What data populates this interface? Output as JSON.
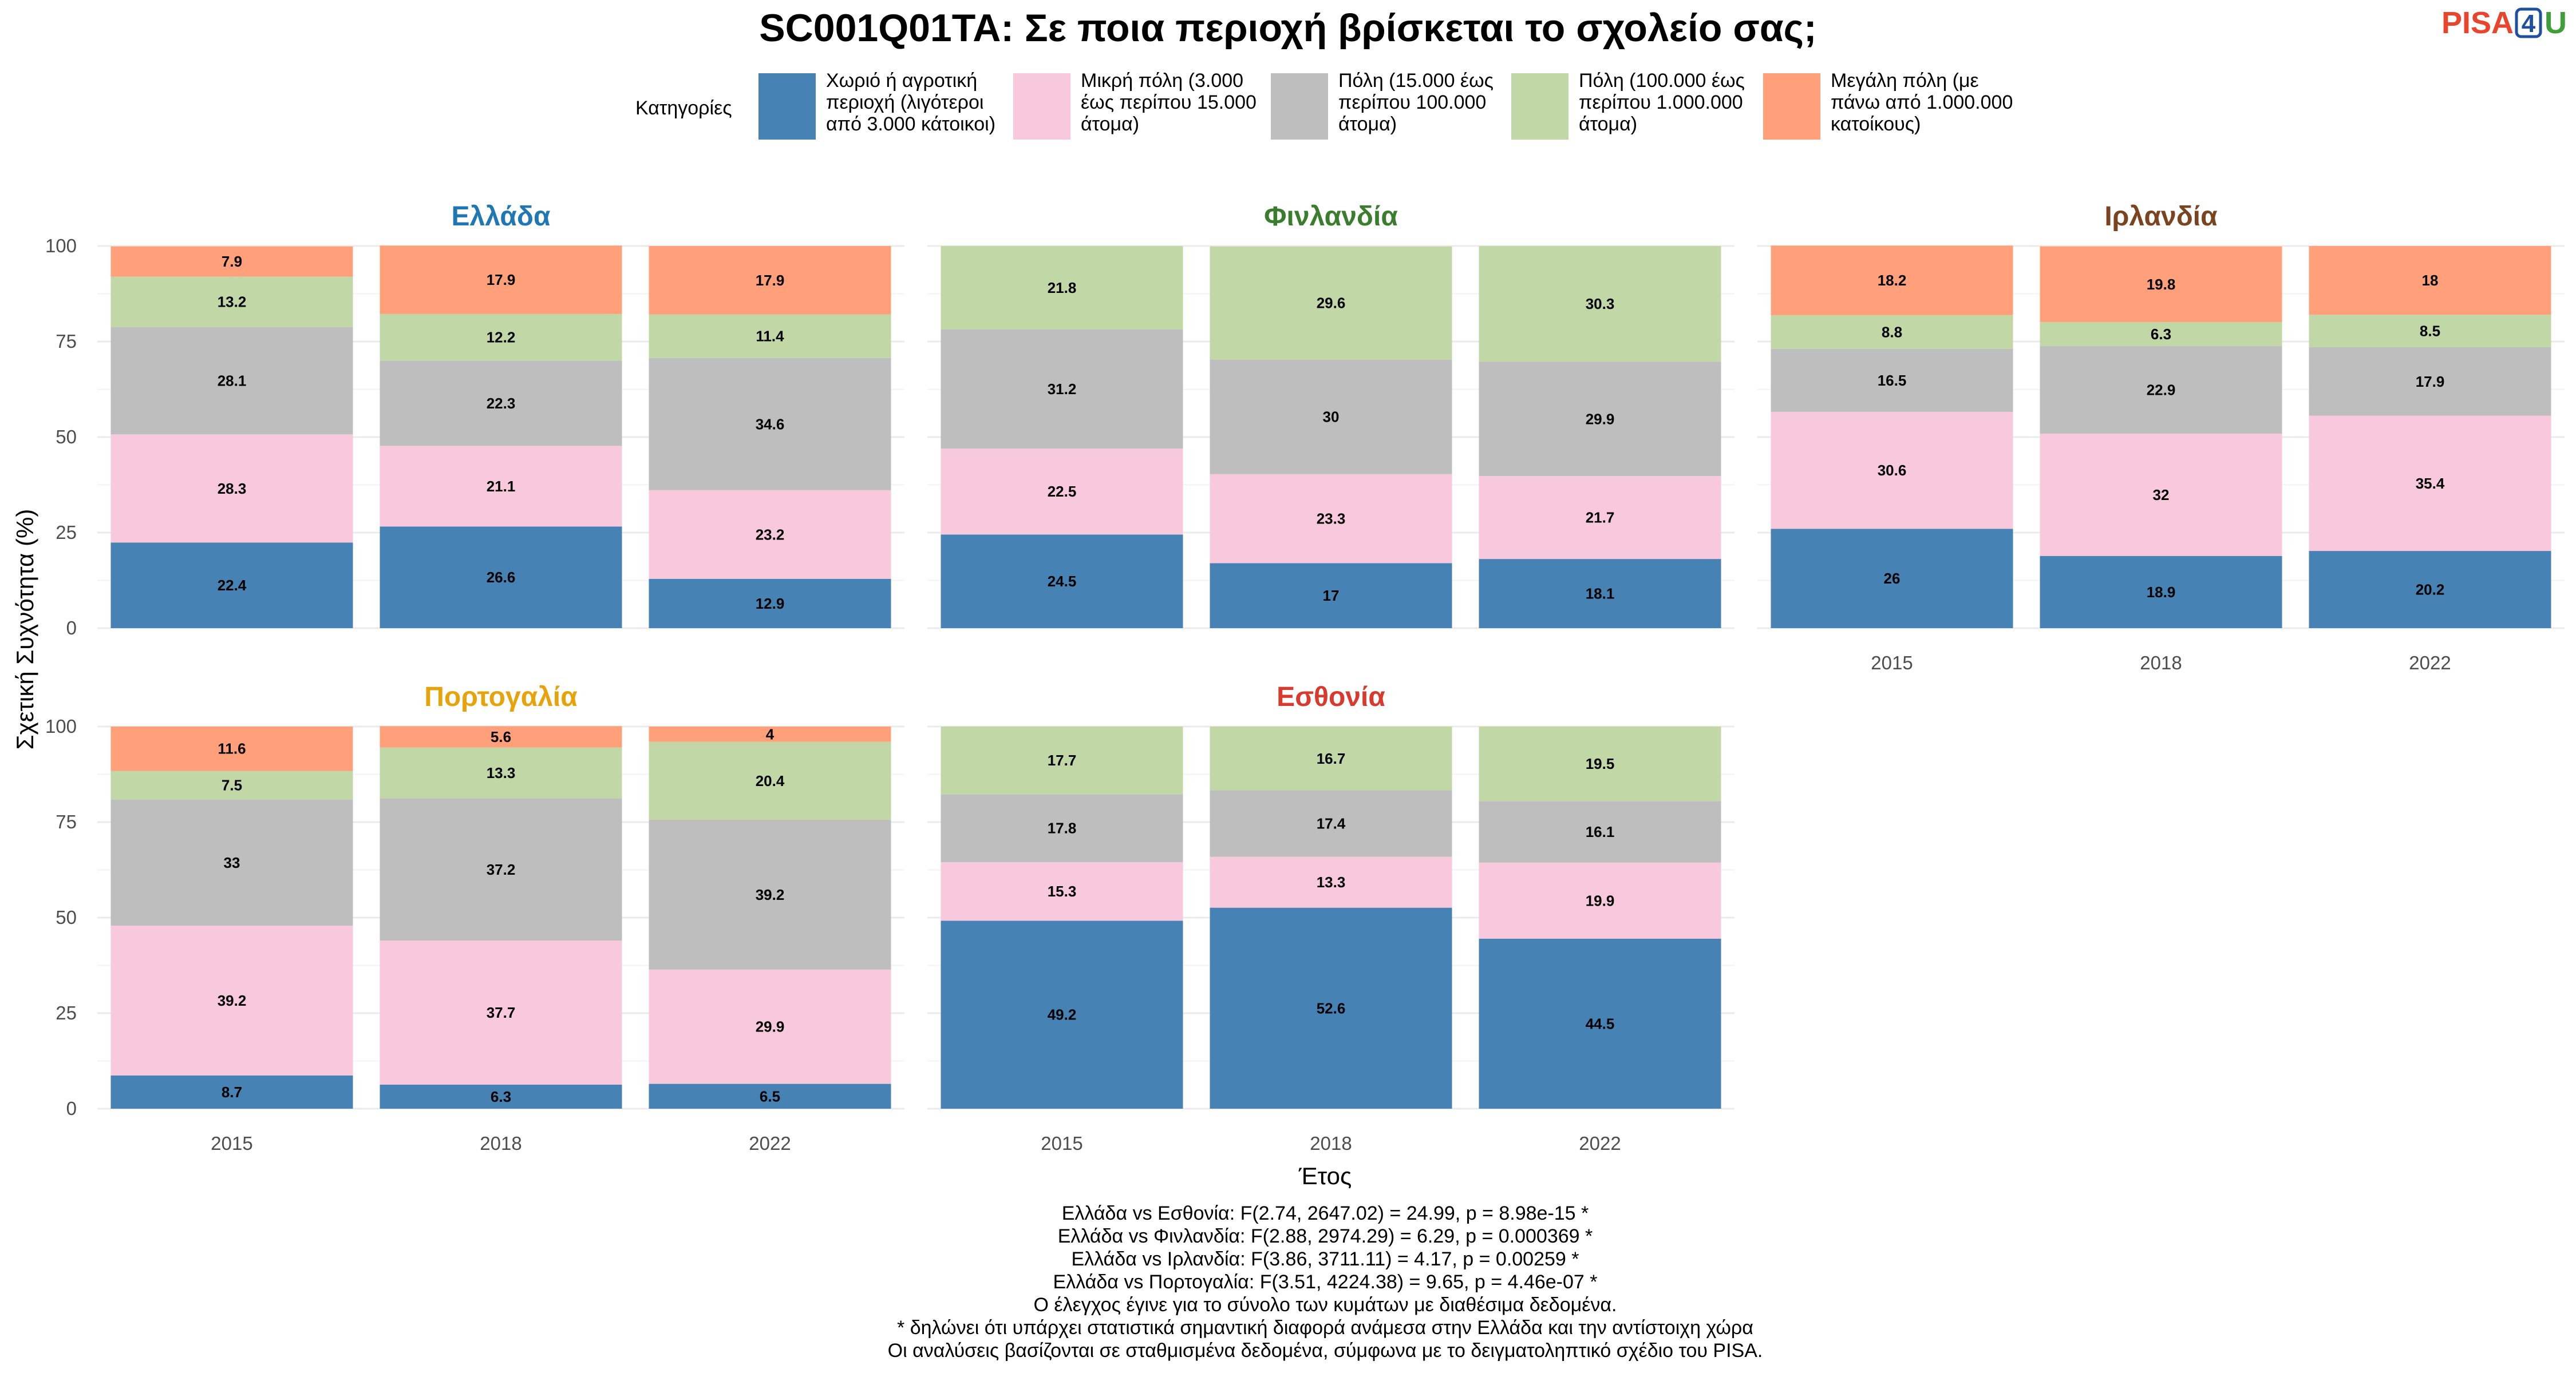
{
  "title": "SC001Q01TA: Σε ποια περιοχή βρίσκεται το σχολείο σας;",
  "logo": {
    "pisa": "PISA",
    "four": "4",
    "u": "U"
  },
  "legend": {
    "title": "Κατηγορίες",
    "items": [
      {
        "lines": [
          "Χωριό ή αγροτική",
          "περιοχή (λιγότεροι",
          "από 3.000 κάτοικοι)"
        ],
        "color": "#4682b4"
      },
      {
        "lines": [
          "Μικρή πόλη (3.000",
          "έως περίπου 15.000",
          "άτομα)"
        ],
        "color": "#f8c8dc"
      },
      {
        "lines": [
          "Πόλη (15.000 έως",
          "περίπου 100.000",
          "άτομα)"
        ],
        "color": "#bebebe"
      },
      {
        "lines": [
          "Πόλη (100.000 έως",
          "περίπου 1.000.000",
          "άτομα)"
        ],
        "color": "#c1d7a6"
      },
      {
        "lines": [
          "Μεγάλη πόλη (με",
          "πάνω από 1.000.000",
          "κατοίκους)"
        ],
        "color": "#ffa07a"
      }
    ]
  },
  "axes": {
    "ylabel": "Σχετική Συχνότητα (%)",
    "xlabel": "Έτος",
    "yticks": [
      "0",
      "25",
      "50",
      "75",
      "100"
    ]
  },
  "chart_data": {
    "type": "bar",
    "stacked": true,
    "ylim": [
      0,
      100
    ],
    "categories": [
      "2015",
      "2018",
      "2022"
    ],
    "facets": [
      {
        "name": "Ελλάδα",
        "color": "#1f77b4",
        "series": [
          [
            22.4,
            26.6,
            12.9
          ],
          [
            28.3,
            21.1,
            23.2
          ],
          [
            28.1,
            22.3,
            34.6
          ],
          [
            13.2,
            12.2,
            11.4
          ],
          [
            7.9,
            17.9,
            17.9
          ]
        ]
      },
      {
        "name": "Φινλανδία",
        "color": "#3a7d2c",
        "series": [
          [
            24.5,
            17,
            18.1
          ],
          [
            22.5,
            23.3,
            21.7
          ],
          [
            31.2,
            30,
            29.9
          ],
          [
            21.8,
            29.6,
            30.3
          ],
          [
            null,
            null,
            null
          ]
        ]
      },
      {
        "name": "Ιρλανδία",
        "color": "#7b4420",
        "series": [
          [
            26,
            18.9,
            20.2
          ],
          [
            30.6,
            32,
            35.4
          ],
          [
            16.5,
            22.9,
            17.9
          ],
          [
            8.8,
            6.3,
            8.5
          ],
          [
            18.2,
            19.8,
            18
          ]
        ]
      },
      {
        "name": "Πορτογαλία",
        "color": "#e8a20c",
        "series": [
          [
            8.7,
            6.3,
            6.5
          ],
          [
            39.2,
            37.7,
            29.9
          ],
          [
            33,
            37.2,
            39.2
          ],
          [
            7.5,
            13.3,
            20.4
          ],
          [
            11.6,
            5.6,
            4
          ]
        ]
      },
      {
        "name": "Εσθονία",
        "color": "#d93a2e",
        "series": [
          [
            49.2,
            52.6,
            44.5
          ],
          [
            15.3,
            13.3,
            19.9
          ],
          [
            17.8,
            17.4,
            16.1
          ],
          [
            17.7,
            16.7,
            19.5
          ],
          [
            null,
            null,
            null
          ]
        ]
      }
    ]
  },
  "notes": [
    "Ελλάδα vs Εσθονία: F(2.74, 2647.02) = 24.99, p = 8.98e-15 *",
    "Ελλάδα vs Φινλανδία: F(2.88, 2974.29) = 6.29, p = 0.000369 *",
    "Ελλάδα vs Ιρλανδία: F(3.86, 3711.11) = 4.17, p = 0.00259 *",
    "Ελλάδα vs Πορτογαλία: F(3.51, 4224.38) = 9.65, p = 4.46e-07 *",
    "Ο έλεγχος έγινε για το σύνολο των κυμάτων με διαθέσιμα δεδομένα.",
    "* δηλώνει ότι υπάρχει στατιστικά σημαντική διαφορά ανάμεσα στην Ελλάδα και την αντίστοιχη χώρα",
    "Οι αναλύσεις βασίζονται σε σταθμισμένα δεδομένα, σύμφωνα με το δειγματοληπτικό σχέδιο του PISA."
  ]
}
